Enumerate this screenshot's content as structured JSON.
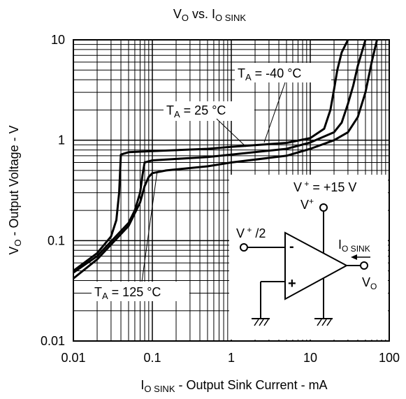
{
  "chart_data": {
    "type": "line",
    "title": {
      "main": "V",
      "main_sub": "O",
      "mid": " vs. I",
      "end_sub": "O SINK"
    },
    "xlabel": {
      "main": "I",
      "sub": "O SINK",
      "rest": " - Output Sink Current - mA"
    },
    "ylabel": {
      "main": "V",
      "sub": "O",
      "rest": " - Output Voltage - V"
    },
    "xscale": "log",
    "yscale": "log",
    "xlim": [
      0.01,
      100
    ],
    "ylim": [
      0.01,
      10
    ],
    "grid": true,
    "xticks": [
      {
        "value": 0.01,
        "label": "0.01"
      },
      {
        "value": 0.1,
        "label": "0.1"
      },
      {
        "value": 1,
        "label": "1"
      },
      {
        "value": 10,
        "label": "10"
      },
      {
        "value": 100,
        "label": "100"
      }
    ],
    "yticks": [
      {
        "value": 0.01,
        "label": "0.01"
      },
      {
        "value": 0.1,
        "label": "0.1"
      },
      {
        "value": 1,
        "label": "1"
      },
      {
        "value": 10,
        "label": "10"
      }
    ],
    "series": [
      {
        "name": "T_A = -40 °C",
        "x": [
          0.01,
          0.02,
          0.03,
          0.035,
          0.038,
          0.04,
          0.05,
          0.1,
          0.5,
          1,
          5,
          10,
          15,
          18,
          20,
          22,
          25,
          30
        ],
        "y": [
          0.05,
          0.075,
          0.11,
          0.16,
          0.3,
          0.72,
          0.76,
          0.78,
          0.82,
          0.86,
          0.94,
          1.05,
          1.3,
          2.0,
          3.2,
          5.0,
          7.5,
          10
        ]
      },
      {
        "name": "T_A = 25 °C",
        "x": [
          0.01,
          0.02,
          0.05,
          0.06,
          0.07,
          0.075,
          0.08,
          0.1,
          0.5,
          1,
          5,
          10,
          20,
          25,
          30,
          35,
          40,
          50
        ],
        "y": [
          0.048,
          0.07,
          0.15,
          0.2,
          0.3,
          0.45,
          0.6,
          0.63,
          0.68,
          0.72,
          0.82,
          0.95,
          1.2,
          1.5,
          2.3,
          3.5,
          5.5,
          10
        ]
      },
      {
        "name": "T_A = 125 °C",
        "x": [
          0.01,
          0.02,
          0.05,
          0.07,
          0.08,
          0.09,
          0.1,
          0.15,
          0.5,
          1,
          5,
          10,
          20,
          30,
          40,
          50,
          60,
          70
        ],
        "y": [
          0.042,
          0.065,
          0.14,
          0.24,
          0.35,
          0.43,
          0.47,
          0.5,
          0.55,
          0.6,
          0.7,
          0.82,
          1.0,
          1.2,
          1.7,
          3.0,
          6.0,
          10
        ]
      }
    ],
    "annotations": {
      "t_minus40": {
        "main": "T",
        "sub": "A",
        "rest": " = -40 °C"
      },
      "t_25": {
        "main": "T",
        "sub": "A",
        "rest": " = 25 °C"
      },
      "t_125": {
        "main": "T",
        "sub": "A",
        "rest": " = 125 °C"
      },
      "supply": {
        "main": "V",
        "sup": " +",
        "rest": " = +15 V"
      }
    },
    "inset": {
      "v_plus": {
        "main": "V",
        "sup": "+"
      },
      "input_label": {
        "main": "V",
        "sup": " +",
        "rest": " /2"
      },
      "minus": "-",
      "plus": "+",
      "current_label": {
        "main": "I",
        "sub": "O SINK"
      },
      "output_label": {
        "main": "V",
        "sub": "O"
      }
    }
  }
}
